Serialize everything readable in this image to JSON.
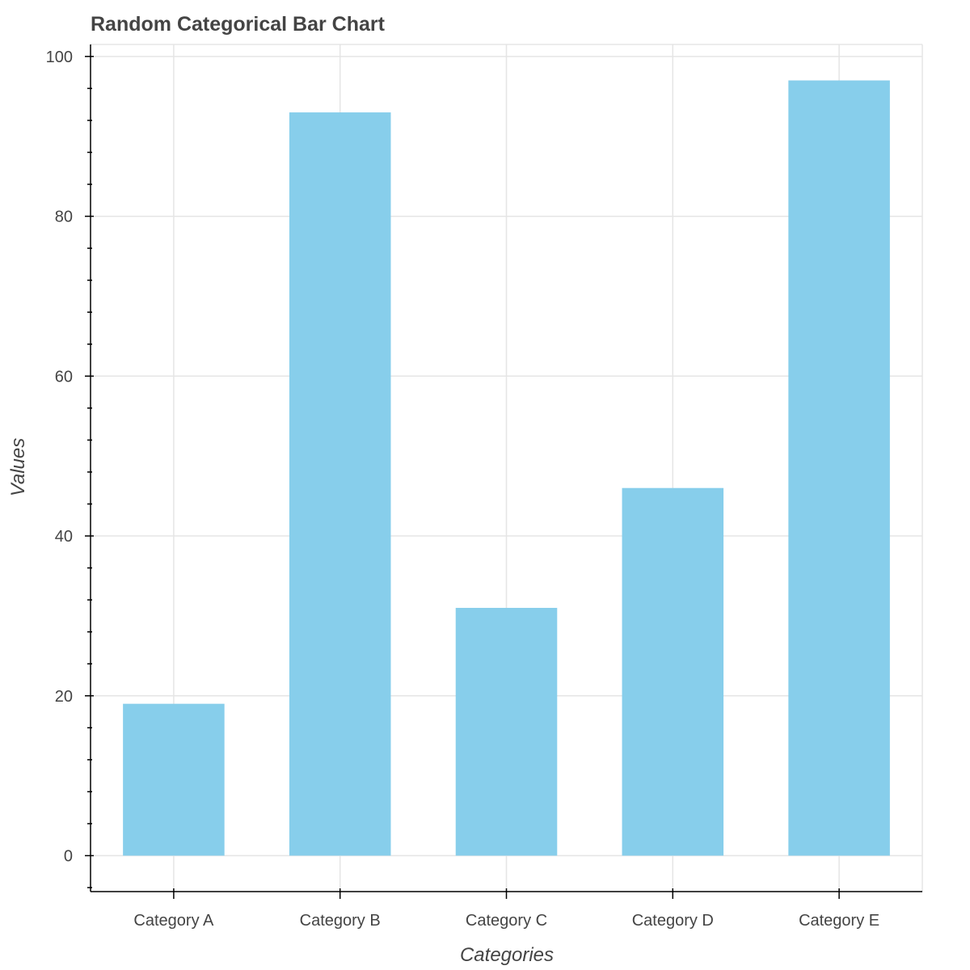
{
  "chart_data": {
    "type": "bar",
    "title": "Random Categorical Bar Chart",
    "xlabel": "Categories",
    "ylabel": "Values",
    "categories": [
      "Category A",
      "Category B",
      "Category C",
      "Category D",
      "Category E"
    ],
    "values": [
      19,
      93,
      31,
      46,
      97
    ],
    "ylim": [
      -4.5,
      101.5
    ],
    "yticks": [
      0,
      20,
      40,
      60,
      80,
      100
    ],
    "yminor_step": 4,
    "grid": true,
    "legend": "none",
    "colors": {
      "bar": "#87CEEB",
      "text": "#444444",
      "grid": "#e5e5e5",
      "axis": "#000000"
    }
  }
}
